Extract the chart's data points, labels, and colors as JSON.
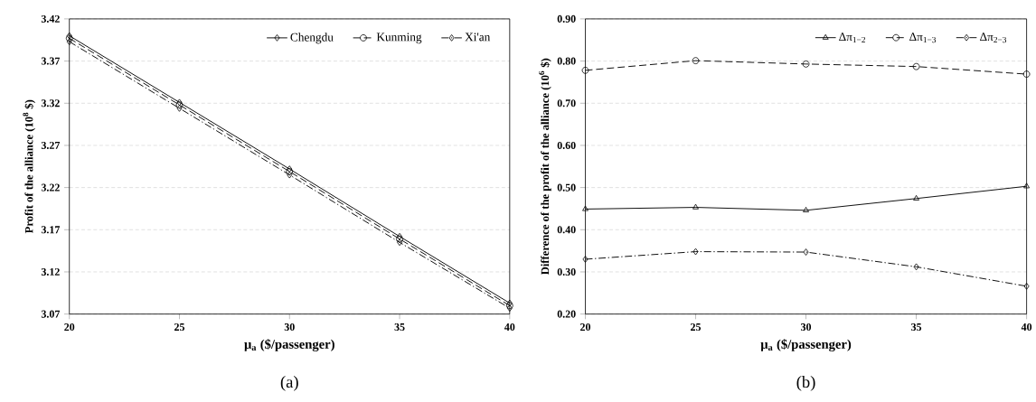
{
  "chart_data": [
    {
      "type": "line",
      "xlabel": "μ$_{a}$ ($/passenger)",
      "ylabel": "Profit of the alliance (10$^{8}$ $)",
      "x": [
        20,
        25,
        30,
        35,
        40
      ],
      "xlim": [
        20,
        40
      ],
      "xticks": [
        20,
        25,
        30,
        35,
        40
      ],
      "ylim": [
        3.07,
        3.42
      ],
      "yticks": [
        3.07,
        3.12,
        3.17,
        3.22,
        3.27,
        3.32,
        3.37,
        3.42
      ],
      "grid": "y",
      "legend": "top right",
      "annotations": [
        "(a)"
      ],
      "series": [
        {
          "name": "Chengdu",
          "color": "#000000",
          "marker": "diamond",
          "line_style": "solid",
          "values": [
            3.4,
            3.321,
            3.242,
            3.162,
            3.083
          ]
        },
        {
          "name": "Kunming",
          "color": "#000000",
          "marker": "circle",
          "line_style": "dashed",
          "values": [
            3.397,
            3.318,
            3.239,
            3.159,
            3.08
          ]
        },
        {
          "name": "Xi'an",
          "color": "#000000",
          "marker": "diamond",
          "line_style": "dashdot",
          "values": [
            3.393,
            3.314,
            3.235,
            3.155,
            3.077
          ]
        }
      ]
    },
    {
      "type": "line",
      "xlabel": "μ$_{a}$ ($/passenger)",
      "ylabel": "Difference of the profit of the alliance (10$^{6}$ $)",
      "x": [
        20,
        25,
        30,
        35,
        40
      ],
      "xlim": [
        20,
        40
      ],
      "xticks": [
        20,
        25,
        30,
        35,
        40
      ],
      "ylim": [
        0.2,
        0.9
      ],
      "yticks": [
        {
          "value": 0.2,
          "label": "0.20"
        },
        {
          "value": 0.3,
          "label": "0.30"
        },
        {
          "value": 0.4,
          "label": "0.40"
        },
        {
          "value": 0.5,
          "label": "0.50"
        },
        {
          "value": 0.6,
          "label": "0.60"
        },
        {
          "value": 0.7,
          "label": "0.70"
        },
        {
          "value": 0.8,
          "label": "0.80"
        },
        {
          "value": 0.9,
          "label": "0.90"
        }
      ],
      "grid": "y",
      "legend": "top right",
      "annotations": [
        "(b)"
      ],
      "series": [
        {
          "name": "Δπ$_{1−2}$",
          "color": "#000000",
          "marker": "triangle",
          "line_style": "solid",
          "values": [
            0.449,
            0.453,
            0.446,
            0.474,
            0.503
          ]
        },
        {
          "name": "Δπ$_{1−3}$",
          "color": "#000000",
          "marker": "circle",
          "line_style": "dashed",
          "values": [
            0.778,
            0.801,
            0.793,
            0.787,
            0.769
          ]
        },
        {
          "name": "Δπ$_{2−3}$",
          "color": "#000000",
          "marker": "diamond",
          "line_style": "dashdot",
          "values": [
            0.33,
            0.348,
            0.347,
            0.312,
            0.266
          ]
        }
      ]
    }
  ]
}
